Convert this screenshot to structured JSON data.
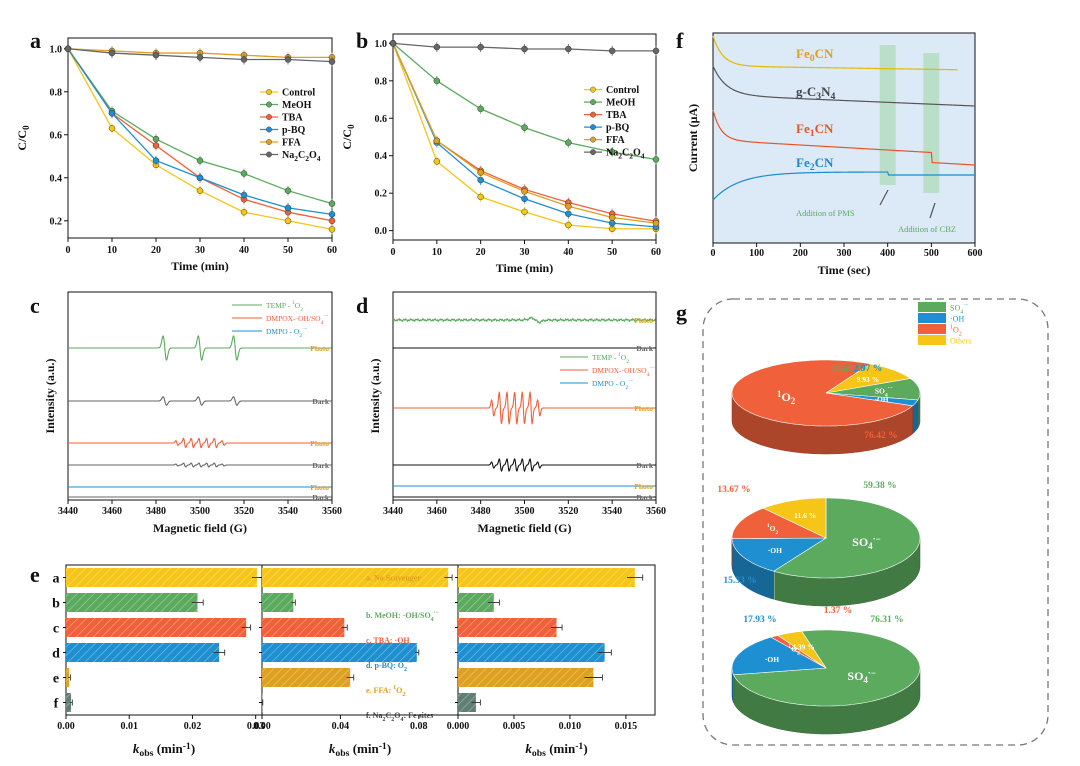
{
  "figure": {
    "panel_labels": [
      "a",
      "b",
      "c",
      "d",
      "e",
      "f",
      "g"
    ]
  },
  "chart_data": [
    {
      "panel": "a",
      "type": "line",
      "xlabel": "Time (min)",
      "ylabel": "C/C0",
      "xlim": [
        0,
        60
      ],
      "ylim": [
        0.12,
        1.05
      ],
      "xticks": [
        0,
        10,
        20,
        30,
        40,
        50,
        60
      ],
      "yticks": [
        0.2,
        0.4,
        0.6,
        0.8,
        1.0
      ],
      "legend_position": "middle-right",
      "x": [
        0,
        10,
        20,
        30,
        40,
        50,
        60
      ],
      "series": [
        {
          "name": "Control",
          "color": "#F5C518",
          "values": [
            1.0,
            0.63,
            0.46,
            0.34,
            0.24,
            0.2,
            0.16
          ]
        },
        {
          "name": "MeOH",
          "color": "#5BAA5E",
          "values": [
            1.0,
            0.71,
            0.58,
            0.48,
            0.42,
            0.34,
            0.28
          ]
        },
        {
          "name": "TBA",
          "color": "#F0603A",
          "values": [
            1.0,
            0.7,
            0.55,
            0.4,
            0.3,
            0.24,
            0.2
          ]
        },
        {
          "name": "p-BQ",
          "color": "#1E8FD0",
          "values": [
            1.0,
            0.7,
            0.48,
            0.4,
            0.32,
            0.26,
            0.23
          ]
        },
        {
          "name": "FFA",
          "color": "#DDA021",
          "values": [
            1.0,
            0.99,
            0.98,
            0.98,
            0.97,
            0.96,
            0.96
          ]
        },
        {
          "name": "Na2C2O4",
          "color": "#666666",
          "values": [
            1.0,
            0.98,
            0.97,
            0.96,
            0.95,
            0.95,
            0.94
          ]
        }
      ]
    },
    {
      "panel": "b",
      "type": "line",
      "xlabel": "Time (min)",
      "ylabel": "C/C0",
      "xlim": [
        0,
        60
      ],
      "ylim": [
        -0.05,
        1.05
      ],
      "xticks": [
        0,
        10,
        20,
        30,
        40,
        50,
        60
      ],
      "yticks": [
        0.0,
        0.2,
        0.4,
        0.6,
        0.8,
        1.0
      ],
      "legend_position": "middle-right",
      "x": [
        0,
        10,
        20,
        30,
        40,
        50,
        60
      ],
      "series": [
        {
          "name": "Control",
          "color": "#F5C518",
          "values": [
            1.0,
            0.37,
            0.18,
            0.1,
            0.03,
            0.01,
            0.01
          ]
        },
        {
          "name": "MeOH",
          "color": "#5BAA5E",
          "values": [
            1.0,
            0.8,
            0.65,
            0.55,
            0.47,
            0.42,
            0.38
          ]
        },
        {
          "name": "TBA",
          "color": "#F0603A",
          "values": [
            1.0,
            0.48,
            0.32,
            0.22,
            0.15,
            0.09,
            0.05
          ]
        },
        {
          "name": "p-BQ",
          "color": "#1E8FD0",
          "values": [
            1.0,
            0.47,
            0.27,
            0.17,
            0.09,
            0.04,
            0.02
          ]
        },
        {
          "name": "FFA",
          "color": "#DDA021",
          "values": [
            1.0,
            0.48,
            0.31,
            0.21,
            0.13,
            0.07,
            0.04
          ]
        },
        {
          "name": "Na2C2O4",
          "color": "#666666",
          "values": [
            1.0,
            0.98,
            0.98,
            0.97,
            0.97,
            0.96,
            0.96
          ]
        }
      ]
    },
    {
      "panel": "c",
      "type": "line",
      "xlabel": "Magnetic field (G)",
      "ylabel": "Intensity (a.u.)",
      "xlim": [
        3440,
        3560
      ],
      "xticks": [
        3440,
        3460,
        3480,
        3500,
        3520,
        3540,
        3560
      ],
      "legend": [
        {
          "name": "TEMP - 1O2",
          "color": "#5BAA5E"
        },
        {
          "name": "DMPOX-·OH/SO4·-",
          "color": "#F0603A"
        },
        {
          "name": "DMPO - O2·-",
          "color": "#1E8FD0"
        }
      ],
      "traces": [
        {
          "label": "Photo",
          "label_color": "#DDA021",
          "color": "#5BAA5E",
          "signal": "TEMP triplet 1:1:1",
          "lines_G": [
            3484,
            3500,
            3516
          ],
          "amplitude": 1.0
        },
        {
          "label": "Dark",
          "label_color": "#666666",
          "color": "#666666",
          "signal": "TEMP triplet 1:1:1",
          "lines_G": [
            3484,
            3500,
            3516
          ],
          "amplitude": 0.35
        },
        {
          "label": "Photo",
          "label_color": "#DDA021",
          "color": "#F0603A",
          "signal": "DMPOX 7-line",
          "center_G": 3500,
          "amplitude": 0.38
        },
        {
          "label": "Dark",
          "label_color": "#666666",
          "color": "#666666",
          "signal": "DMPOX 7-line",
          "center_G": 3500,
          "amplitude": 0.16
        },
        {
          "label": "Photo",
          "label_color": "#DDA021",
          "color": "#1E8FD0",
          "signal": "flat",
          "amplitude": 0.0
        },
        {
          "label": "Dark",
          "label_color": "#666666",
          "color": "#666666",
          "signal": "flat",
          "amplitude": 0.0
        }
      ]
    },
    {
      "panel": "d",
      "type": "line",
      "xlabel": "Magnetic field (G)",
      "ylabel": "Intensity (a.u.)",
      "xlim": [
        3440,
        3560
      ],
      "xticks": [
        3440,
        3460,
        3480,
        3500,
        3520,
        3540,
        3560
      ],
      "legend": [
        {
          "name": "TEMP - 1O2",
          "color": "#5BAA5E"
        },
        {
          "name": "DMPOX-·OH/SO4·-",
          "color": "#F0603A"
        },
        {
          "name": "DMPO - O2·-",
          "color": "#1E8FD0"
        }
      ],
      "traces": [
        {
          "label": "Photo",
          "label_color": "#DDA021",
          "color": "#5BAA5E",
          "signal": "noise",
          "amplitude": 0.12
        },
        {
          "label": "Dark",
          "label_color": "#666666",
          "color": "#111111",
          "signal": "flat",
          "amplitude": 0.0
        },
        {
          "label": "Photo",
          "label_color": "#DDA021",
          "color": "#F0603A",
          "signal": "DMPOX 7-line",
          "center_G": 3496,
          "amplitude": 1.0
        },
        {
          "label": "Dark",
          "label_color": "#666666",
          "color": "#111111",
          "signal": "DMPOX 7-line",
          "center_G": 3496,
          "amplitude": 0.45
        },
        {
          "label": "Photo",
          "label_color": "#DDA021",
          "color": "#1E8FD0",
          "signal": "flat",
          "amplitude": 0.0
        },
        {
          "label": "Dark",
          "label_color": "#666666",
          "color": "#111111",
          "signal": "flat",
          "amplitude": 0.0
        }
      ]
    },
    {
      "panel": "e",
      "type": "bar",
      "orientation": "horizontal",
      "xlabel": "kobs (min-1)",
      "categories": [
        "a",
        "b",
        "c",
        "d",
        "e",
        "f"
      ],
      "category_colors": [
        "#F5C518",
        "#5BAA5E",
        "#F0603A",
        "#1E8FD0",
        "#DDA021",
        "#5F7F73"
      ],
      "annotations": [
        {
          "text": "a. No Scavenger",
          "color": "#DDA021"
        },
        {
          "text": "b. MeOH: ·OH/SO4·-",
          "color": "#5BAA5E"
        },
        {
          "text": "c. TBA: ·OH",
          "color": "#F0603A"
        },
        {
          "text": "d. p-BQ: O2·-",
          "color": "#1E8FD0"
        },
        {
          "text": "e. FFA: 1O2",
          "color": "#DDA021"
        },
        {
          "text": "f. Na2C2O4: Fe sites",
          "color": "#444444"
        }
      ],
      "subplots": [
        {
          "xlim": [
            0,
            0.031
          ],
          "xticks": [
            0.0,
            0.01,
            0.02,
            0.03
          ],
          "tick_labels": [
            "0.00",
            "0.01",
            "0.02",
            "0.03"
          ],
          "values": [
            0.0302,
            0.0208,
            0.0285,
            0.0242,
            0.0005,
            0.0008
          ],
          "errors": [
            0.0008,
            0.0009,
            0.0007,
            0.0009,
            0.0002,
            0.0002
          ]
        },
        {
          "xlim": [
            0,
            0.1
          ],
          "xticks": [
            0.0,
            0.04,
            0.08
          ],
          "tick_labels": [
            "0.00",
            "0.04",
            "0.08"
          ],
          "values": [
            0.095,
            0.016,
            0.042,
            0.079,
            0.045,
            0.0003
          ],
          "errors": [
            0.002,
            0.001,
            0.0015,
            0.001,
            0.0018,
            0.0001
          ]
        },
        {
          "xlim": [
            0,
            0.0176
          ],
          "xticks": [
            0.0,
            0.005,
            0.01,
            0.015
          ],
          "tick_labels": [
            "0.000",
            "0.005",
            "0.010",
            "0.015"
          ],
          "values": [
            0.0158,
            0.0032,
            0.0088,
            0.0131,
            0.0121,
            0.0016
          ],
          "errors": [
            0.0007,
            0.0005,
            0.0005,
            0.0006,
            0.0008,
            0.0004
          ]
        }
      ]
    },
    {
      "panel": "f",
      "type": "line",
      "xlabel": "Time (sec)",
      "ylabel": "Current (μA)",
      "xlim": [
        0,
        600
      ],
      "xticks": [
        0,
        100,
        200,
        300,
        400,
        500,
        600
      ],
      "annotations": [
        {
          "text": "Addition of PMS",
          "color": "#5BAA5E",
          "at_sec": 400
        },
        {
          "text": "Addition of CBZ",
          "color": "#5BAA5E",
          "at_sec": 500
        }
      ],
      "series": [
        {
          "name": "Fe0CN",
          "color": "#E6B800",
          "label_color": "#DDA021"
        },
        {
          "name": "g-C3N4",
          "color": "#555555",
          "label_color": "#444444"
        },
        {
          "name": "Fe1CN",
          "color": "#E8552B",
          "label_color": "#E8552B"
        },
        {
          "name": "Fe2CN",
          "color": "#1A8CC8",
          "label_color": "#1A8CC8"
        }
      ]
    },
    {
      "panel": "g",
      "type": "pie",
      "legend": [
        {
          "name": "SO4·-",
          "color": "#5BAA5E"
        },
        {
          "name": "·OH",
          "color": "#1E8FD0"
        },
        {
          "name": "1O2",
          "color": "#F0603A"
        },
        {
          "name": "Others",
          "color": "#F5C518"
        }
      ],
      "pies": [
        {
          "slices": [
            {
              "name": "SO4·-",
              "value": 10.68,
              "label": "10.68 %",
              "inner": "SO4·-",
              "color": "#5BAA5E"
            },
            {
              "name": "·OH",
              "value": 2.97,
              "label": "2.97 %",
              "inner": "·OH",
              "color": "#1E8FD0"
            },
            {
              "name": "1O2",
              "value": 76.42,
              "label": "76.42 %",
              "inner": "1O2",
              "color": "#F0603A"
            },
            {
              "name": "Others",
              "value": 9.93,
              "label": "",
              "inner": "9.93 %",
              "color": "#F5C518"
            }
          ]
        },
        {
          "slices": [
            {
              "name": "SO4·-",
              "value": 59.38,
              "label": "59.38 %",
              "inner": "SO4·-",
              "color": "#5BAA5E"
            },
            {
              "name": "·OH",
              "value": 15.33,
              "label": "15.33 %",
              "inner": "·OH",
              "color": "#1E8FD0"
            },
            {
              "name": "1O2",
              "value": 13.67,
              "label": "13.67 %",
              "inner": "1O2",
              "color": "#F0603A"
            },
            {
              "name": "Others",
              "value": 11.6,
              "label": "",
              "inner": "11.6 %",
              "color": "#F5C518"
            }
          ]
        },
        {
          "slices": [
            {
              "name": "SO4·-",
              "value": 76.31,
              "label": "76.31 %",
              "inner": "SO4·-",
              "color": "#5BAA5E"
            },
            {
              "name": "·OH",
              "value": 17.93,
              "label": "17.93 %",
              "inner": "·OH",
              "color": "#1E8FD0"
            },
            {
              "name": "1O2",
              "value": 1.37,
              "label": "1.37 %",
              "inner": "1O2",
              "color": "#F0603A"
            },
            {
              "name": "Others",
              "value": 4.39,
              "label": "",
              "inner": "4.39 %",
              "color": "#F5C518"
            }
          ]
        }
      ]
    }
  ]
}
